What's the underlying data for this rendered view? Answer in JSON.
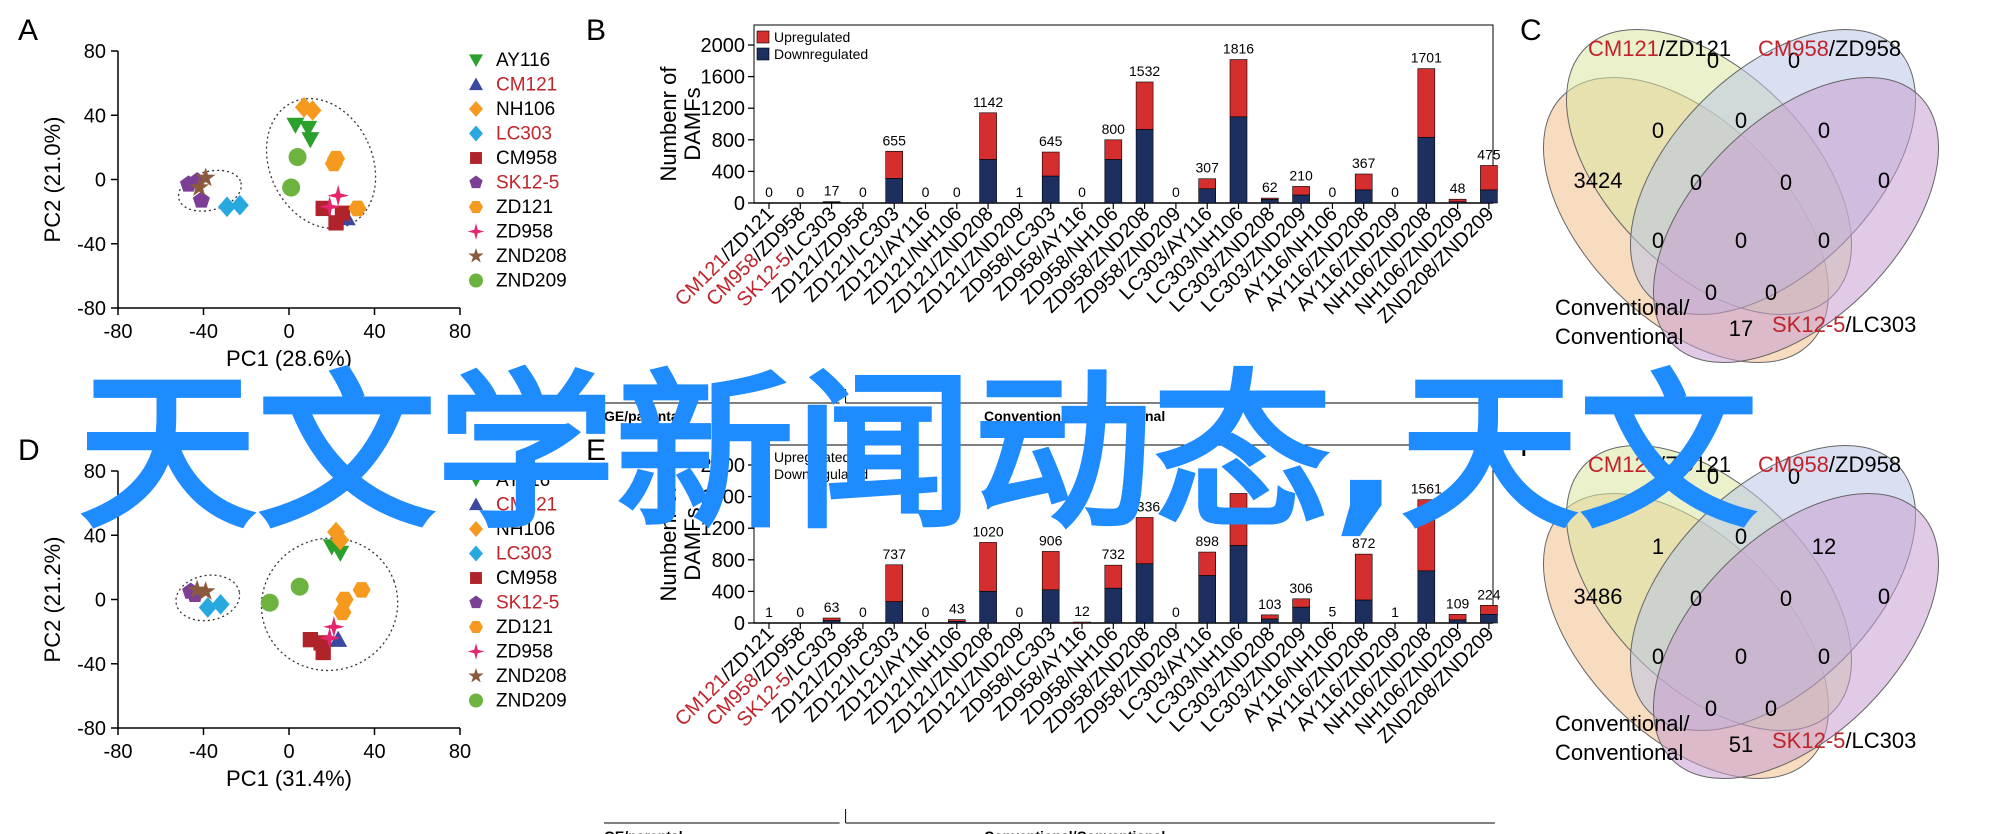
{
  "colors": {
    "upregulated": "#d42e2e",
    "downregulated": "#1c2f5e",
    "red_text": "#c0242b",
    "watermark": "#1e8bff",
    "venn": [
      "#f3c08c",
      "#d9e6a0",
      "#b9c7e6",
      "#c79fcf"
    ]
  },
  "legend_items": [
    {
      "label": "AY116",
      "color": "#2ca02c",
      "marker": "triangle-down",
      "red": false
    },
    {
      "label": "CM121",
      "color": "#3b4aa0",
      "marker": "triangle-up",
      "red": true
    },
    {
      "label": "NH106",
      "color": "#f59a1f",
      "marker": "diamond",
      "red": false
    },
    {
      "label": "LC303",
      "color": "#27a9e0",
      "marker": "diamond",
      "red": true
    },
    {
      "label": "CM958",
      "color": "#b0232a",
      "marker": "square",
      "red": false
    },
    {
      "label": "SK12-5",
      "color": "#7b3f96",
      "marker": "pentagon",
      "red": true
    },
    {
      "label": "ZD121",
      "color": "#f59a1f",
      "marker": "hexagon",
      "red": false
    },
    {
      "label": "ZD958",
      "color": "#e5256e",
      "marker": "star4",
      "red": false
    },
    {
      "label": "ZND208",
      "color": "#8b5a3c",
      "marker": "star5",
      "red": false
    },
    {
      "label": "ZND209",
      "color": "#6cb33f",
      "marker": "circle",
      "red": false
    }
  ],
  "bar_categories": [
    {
      "parts": [
        {
          "t": "CM121",
          "red": true
        },
        {
          "t": "/ZD121",
          "red": false
        }
      ]
    },
    {
      "parts": [
        {
          "t": "CM958",
          "red": true
        },
        {
          "t": "/ZD958",
          "red": false
        }
      ]
    },
    {
      "parts": [
        {
          "t": "SK12-5",
          "red": true
        },
        {
          "t": "/LC303",
          "red": false
        }
      ]
    },
    {
      "parts": [
        {
          "t": "ZD121/ZD958",
          "red": false
        }
      ]
    },
    {
      "parts": [
        {
          "t": "ZD121/LC303",
          "red": false
        }
      ]
    },
    {
      "parts": [
        {
          "t": "ZD121/AY116",
          "red": false
        }
      ]
    },
    {
      "parts": [
        {
          "t": "ZD121/NH106",
          "red": false
        }
      ]
    },
    {
      "parts": [
        {
          "t": "ZD121/ZND208",
          "red": false
        }
      ]
    },
    {
      "parts": [
        {
          "t": "ZD121/ZND209",
          "red": false
        }
      ]
    },
    {
      "parts": [
        {
          "t": "ZD958/LC303",
          "red": false
        }
      ]
    },
    {
      "parts": [
        {
          "t": "ZD958/AY116",
          "red": false
        }
      ]
    },
    {
      "parts": [
        {
          "t": "ZD958/NH106",
          "red": false
        }
      ]
    },
    {
      "parts": [
        {
          "t": "ZD958/ZND208",
          "red": false
        }
      ]
    },
    {
      "parts": [
        {
          "t": "ZD958/ZND209",
          "red": false
        }
      ]
    },
    {
      "parts": [
        {
          "t": "LC303/AY116",
          "red": false
        }
      ]
    },
    {
      "parts": [
        {
          "t": "LC303/NH106",
          "red": false
        }
      ]
    },
    {
      "parts": [
        {
          "t": "LC303/ZND208",
          "red": false
        }
      ]
    },
    {
      "parts": [
        {
          "t": "LC303/ZND209",
          "red": false
        }
      ]
    },
    {
      "parts": [
        {
          "t": "AY116/NH106",
          "red": false
        }
      ]
    },
    {
      "parts": [
        {
          "t": "AY116/ZND208",
          "red": false
        }
      ]
    },
    {
      "parts": [
        {
          "t": "AY116/ZND209",
          "red": false
        }
      ]
    },
    {
      "parts": [
        {
          "t": "NH106/ZND208",
          "red": false
        }
      ]
    },
    {
      "parts": [
        {
          "t": "NH106/ZND209",
          "red": false
        }
      ]
    },
    {
      "parts": [
        {
          "t": "ZND208/ZND209",
          "red": false
        }
      ]
    }
  ],
  "watermark": "天文学新闻动态,天文",
  "chart_data": [
    {
      "panel": "A",
      "type": "scatter",
      "xlabel": "PC1 (28.6%)",
      "ylabel": "PC2 (21.0%)",
      "xlim": [
        -80,
        80
      ],
      "ylim": [
        -80,
        80
      ],
      "xticks": [
        "-80",
        "-40",
        "0",
        "40",
        "80"
      ],
      "yticks": [
        "80",
        "40",
        "0",
        "-40",
        "-80"
      ],
      "ellipses": [
        {
          "cx": -37,
          "cy": -7,
          "rx": 15,
          "ry": 12,
          "angle": -15
        },
        {
          "cx": 15,
          "cy": 10,
          "rx": 24,
          "ry": 42,
          "angle": -25
        }
      ],
      "points": [
        {
          "g": 0,
          "x": 3,
          "y": 34
        },
        {
          "g": 0,
          "x": 9,
          "y": 32
        },
        {
          "g": 0,
          "x": 10,
          "y": 25
        },
        {
          "g": 1,
          "x": 27,
          "y": -24
        },
        {
          "g": 1,
          "x": 24,
          "y": -22
        },
        {
          "g": 2,
          "x": 7,
          "y": 45
        },
        {
          "g": 2,
          "x": 11,
          "y": 43
        },
        {
          "g": 3,
          "x": -29,
          "y": -17
        },
        {
          "g": 3,
          "x": -23,
          "y": -16
        },
        {
          "g": 4,
          "x": 16,
          "y": -18
        },
        {
          "g": 4,
          "x": 22,
          "y": -27
        },
        {
          "g": 4,
          "x": 25,
          "y": -21
        },
        {
          "g": 5,
          "x": -47,
          "y": -3
        },
        {
          "g": 5,
          "x": -41,
          "y": -13
        },
        {
          "g": 5,
          "x": -43,
          "y": -1
        },
        {
          "g": 6,
          "x": 22,
          "y": 13
        },
        {
          "g": 6,
          "x": 21,
          "y": 10
        },
        {
          "g": 6,
          "x": 32,
          "y": -18
        },
        {
          "g": 7,
          "x": 23,
          "y": -10
        },
        {
          "g": 7,
          "x": 19,
          "y": -17
        },
        {
          "g": 8,
          "x": -39,
          "y": 1
        },
        {
          "g": 8,
          "x": -42,
          "y": -5
        },
        {
          "g": 9,
          "x": 4,
          "y": 14
        },
        {
          "g": 9,
          "x": 1,
          "y": -5
        }
      ]
    },
    {
      "panel": "B",
      "type": "bar",
      "ylabel": "Numbenr of DAMFs",
      "ylim": [
        0,
        2000
      ],
      "yticks": [
        "0",
        "400",
        "800",
        "1200",
        "1600",
        "2000"
      ],
      "legend": [
        "Upregulated",
        "Downregulated"
      ],
      "totals": [
        0,
        0,
        17,
        0,
        655,
        0,
        0,
        1142,
        1,
        645,
        0,
        800,
        1532,
        0,
        307,
        1816,
        62,
        210,
        0,
        367,
        0,
        1701,
        48,
        475
      ],
      "total_labels": [
        "0",
        "0",
        "17",
        "0",
        "655",
        "0",
        "0",
        "1142",
        "1",
        "645",
        "0",
        "800",
        "1532",
        "0",
        "307",
        "1816",
        "62",
        "210",
        "0",
        "367",
        "0",
        "1701",
        "48",
        "475"
      ],
      "downregulated": [
        0,
        0,
        8,
        0,
        310,
        0,
        0,
        550,
        0,
        340,
        0,
        550,
        930,
        0,
        180,
        1090,
        45,
        100,
        0,
        165,
        0,
        830,
        15,
        165
      ],
      "groups": [
        "GE/parental",
        "Conventional/Conventional"
      ]
    },
    {
      "panel": "C",
      "type": "venn",
      "set_labels": [
        {
          "parts": [
            {
              "t": "CM121",
              "red": true
            },
            {
              "t": "/ZD121",
              "red": false
            }
          ]
        },
        {
          "parts": [
            {
              "t": "CM958",
              "red": true
            },
            {
              "t": "/ZD958",
              "red": false
            }
          ]
        },
        {
          "parts": [
            {
              "t": "SK12-5",
              "red": true
            },
            {
              "t": "/LC303",
              "red": false
            }
          ]
        },
        {
          "parts": [
            {
              "t": "Conventional/",
              "red": false
            }
          ]
        },
        {
          "parts": [
            {
              "t": "Conventional",
              "red": false
            }
          ]
        }
      ],
      "regions": [
        "0",
        "0",
        "3424",
        "0",
        "0",
        "0",
        "0",
        "0",
        "0",
        "0",
        "0",
        "0",
        "0",
        "17",
        "0"
      ]
    },
    {
      "panel": "D",
      "type": "scatter",
      "xlabel": "PC1 (31.4%)",
      "ylabel": "PC2 (21.2%)",
      "xlim": [
        -80,
        80
      ],
      "ylim": [
        -80,
        80
      ],
      "xticks": [
        "-80",
        "-40",
        "0",
        "40",
        "80"
      ],
      "yticks": [
        "80",
        "40",
        "0",
        "-40",
        "-80"
      ],
      "ellipses": [
        {
          "cx": -38,
          "cy": 1,
          "rx": 15,
          "ry": 14,
          "angle": -10
        },
        {
          "cx": 19,
          "cy": -3,
          "rx": 32,
          "ry": 41,
          "angle": -20
        }
      ],
      "points": [
        {
          "g": 0,
          "x": 20,
          "y": 33
        },
        {
          "g": 0,
          "x": 24,
          "y": 29
        },
        {
          "g": 1,
          "x": 23,
          "y": -25
        },
        {
          "g": 2,
          "x": 22,
          "y": 42
        },
        {
          "g": 2,
          "x": 24,
          "y": 37
        },
        {
          "g": 3,
          "x": -38,
          "y": -5
        },
        {
          "g": 3,
          "x": -32,
          "y": -3
        },
        {
          "g": 4,
          "x": 10,
          "y": -25
        },
        {
          "g": 4,
          "x": 16,
          "y": -33
        },
        {
          "g": 4,
          "x": 15,
          "y": -27
        },
        {
          "g": 5,
          "x": -46,
          "y": 5
        },
        {
          "g": 5,
          "x": -44,
          "y": 3
        },
        {
          "g": 6,
          "x": 25,
          "y": -8
        },
        {
          "g": 6,
          "x": 34,
          "y": 6
        },
        {
          "g": 6,
          "x": 26,
          "y": 0
        },
        {
          "g": 7,
          "x": 21,
          "y": -17
        },
        {
          "g": 7,
          "x": 19,
          "y": -24
        },
        {
          "g": 8,
          "x": -43,
          "y": 6
        },
        {
          "g": 8,
          "x": -39,
          "y": 5
        },
        {
          "g": 9,
          "x": 5,
          "y": 8
        },
        {
          "g": 9,
          "x": -9,
          "y": -2
        }
      ]
    },
    {
      "panel": "E",
      "type": "bar",
      "ylabel": "Numbenr of DAMFs",
      "ylim": [
        0,
        2000
      ],
      "yticks": [
        "0",
        "400",
        "800",
        "1200",
        "1600",
        "2000"
      ],
      "legend": [
        "Upregulated",
        "Downregulated"
      ],
      "totals": [
        1,
        0,
        63,
        0,
        737,
        0,
        43,
        1020,
        0,
        906,
        12,
        732,
        1336,
        0,
        898,
        1640,
        103,
        306,
        5,
        872,
        1,
        1561,
        109,
        224
      ],
      "total_labels": [
        "1",
        "0",
        "63",
        "0",
        "737",
        "0",
        "43",
        "1020",
        "0",
        "906",
        "12",
        "732",
        "1336",
        "0",
        "898",
        "",
        "103",
        "306",
        "5",
        "872",
        "1",
        "1561",
        "109",
        "224"
      ],
      "downregulated": [
        0,
        0,
        30,
        0,
        270,
        0,
        20,
        400,
        0,
        420,
        0,
        440,
        750,
        0,
        600,
        980,
        50,
        200,
        0,
        290,
        0,
        660,
        40,
        110
      ],
      "groups": [
        "GE/parental",
        "Conventional/Conventional"
      ]
    },
    {
      "panel": "F",
      "type": "venn",
      "set_labels": [
        {
          "parts": [
            {
              "t": "CM121",
              "red": true
            },
            {
              "t": "/ZD121",
              "red": false
            }
          ]
        },
        {
          "parts": [
            {
              "t": "CM958",
              "red": true
            },
            {
              "t": "/ZD958",
              "red": false
            }
          ]
        },
        {
          "parts": [
            {
              "t": "SK12-5",
              "red": true
            },
            {
              "t": "/LC303",
              "red": false
            }
          ]
        },
        {
          "parts": [
            {
              "t": "Conventional/",
              "red": false
            }
          ]
        },
        {
          "parts": [
            {
              "t": "Conventional",
              "red": false
            }
          ]
        }
      ],
      "regions": [
        "0",
        "0",
        "3486",
        "1",
        "0",
        "12",
        "0",
        "0",
        "0",
        "0",
        "0",
        "0",
        "0",
        "51",
        "0"
      ]
    }
  ]
}
